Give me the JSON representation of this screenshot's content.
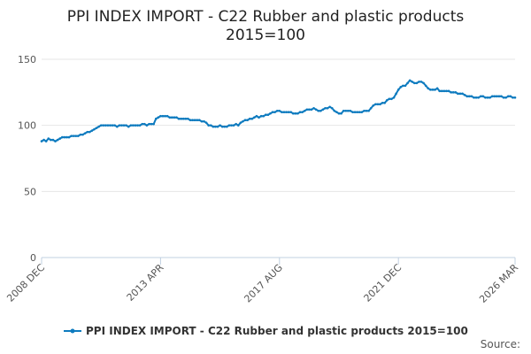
{
  "chart_data": {
    "type": "line",
    "title_lines": [
      "PPI INDEX IMPORT - C22 Rubber and plastic products",
      "2015=100"
    ],
    "categories": [
      "2008 DEC",
      null,
      null,
      null,
      null,
      null,
      null,
      null,
      null,
      null,
      null,
      null,
      null,
      null,
      null,
      null,
      null,
      null,
      null,
      null,
      null,
      null,
      null,
      null,
      null,
      null,
      null,
      null,
      null,
      null,
      null,
      null,
      null,
      null,
      null,
      null,
      null,
      null,
      null,
      null,
      null,
      null,
      null,
      null,
      null,
      null,
      null,
      null,
      null,
      null,
      null,
      null,
      "2013 APR",
      null,
      null,
      null,
      null,
      null,
      null,
      null,
      null,
      null,
      null,
      null,
      null,
      null,
      null,
      null,
      null,
      null,
      null,
      null,
      null,
      null,
      null,
      null,
      null,
      null,
      null,
      null,
      null,
      null,
      null,
      null,
      null,
      null,
      null,
      null,
      null,
      null,
      null,
      null,
      null,
      null,
      null,
      null,
      null,
      null,
      null,
      null,
      null,
      null,
      null,
      null,
      "2017 AUG",
      null,
      null,
      null,
      null,
      null,
      null,
      null,
      null,
      null,
      null,
      null,
      null,
      null,
      null,
      null,
      null,
      null,
      null,
      null,
      null,
      null,
      null,
      null,
      null,
      null,
      null,
      null,
      null,
      null,
      null,
      null,
      null,
      null,
      null,
      null,
      null,
      null,
      null,
      null,
      null,
      null,
      null,
      null,
      null,
      null,
      null,
      null,
      null,
      null,
      null,
      null,
      "2021 DEC",
      null,
      null,
      null,
      null,
      null,
      null,
      null,
      null,
      null,
      null,
      null,
      null,
      null,
      null,
      null,
      null,
      null,
      null,
      null,
      null,
      null,
      null,
      null,
      null,
      null,
      null,
      null,
      null,
      null,
      null,
      null,
      null,
      null,
      null,
      null,
      null,
      null,
      null,
      null,
      null,
      null,
      null,
      null,
      null,
      null,
      null,
      null,
      null,
      null,
      null,
      "2026 MAR"
    ],
    "series": [
      {
        "name": "PPI INDEX IMPORT - C22 Rubber and plastic products 2015=100",
        "color": "#0e7bbf",
        "values": [
          88,
          89,
          88,
          90,
          89,
          89,
          88,
          89,
          90,
          91,
          91,
          91,
          91,
          92,
          92,
          92,
          92,
          93,
          93,
          94,
          95,
          95,
          96,
          97,
          98,
          99,
          100,
          100,
          100,
          100,
          100,
          100,
          100,
          99,
          100,
          100,
          100,
          100,
          99,
          100,
          100,
          100,
          100,
          100,
          101,
          101,
          100,
          101,
          101,
          101,
          105,
          106,
          107,
          107,
          107,
          107,
          106,
          106,
          106,
          106,
          105,
          105,
          105,
          105,
          105,
          104,
          104,
          104,
          104,
          104,
          103,
          103,
          102,
          100,
          100,
          99,
          99,
          99,
          100,
          99,
          99,
          99,
          100,
          100,
          100,
          101,
          100,
          102,
          103,
          104,
          104,
          105,
          105,
          106,
          107,
          106,
          107,
          107,
          108,
          108,
          109,
          110,
          110,
          111,
          111,
          110,
          110,
          110,
          110,
          110,
          109,
          109,
          109,
          110,
          110,
          111,
          112,
          112,
          112,
          113,
          112,
          111,
          111,
          112,
          113,
          113,
          114,
          113,
          111,
          110,
          109,
          109,
          111,
          111,
          111,
          111,
          110,
          110,
          110,
          110,
          110,
          111,
          111,
          111,
          113,
          115,
          116,
          116,
          116,
          117,
          117,
          119,
          120,
          120,
          121,
          124,
          127,
          129,
          130,
          130,
          132,
          134,
          133,
          132,
          132,
          133,
          133,
          132,
          130,
          128,
          127,
          127,
          127,
          128,
          126,
          126,
          126,
          126,
          126,
          125,
          125,
          125,
          124,
          124,
          124,
          123,
          122,
          122,
          122,
          121,
          121,
          121,
          122,
          122,
          121,
          121,
          121,
          122,
          122,
          122,
          122,
          122,
          121,
          121,
          122,
          122,
          121,
          121
        ]
      }
    ],
    "ylim": [
      0,
      150
    ],
    "yticks": [
      0,
      50,
      100,
      150
    ],
    "grid": true,
    "source": "Source:"
  }
}
